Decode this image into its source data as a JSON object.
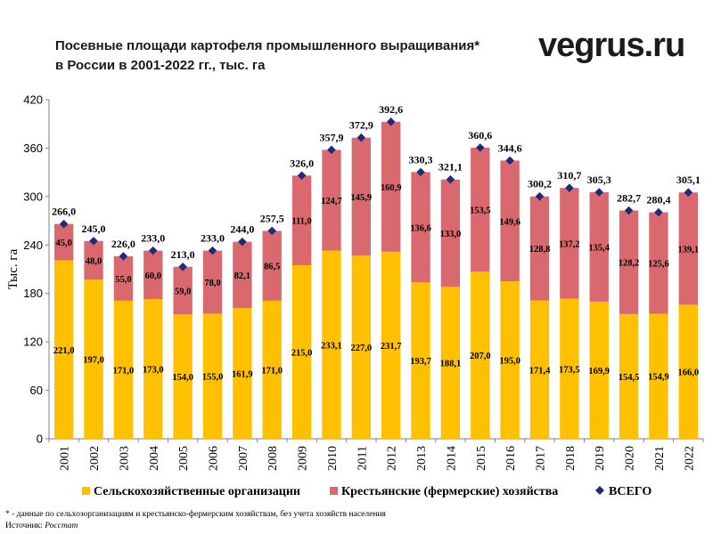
{
  "title_lines": [
    "Посевные площади картофеля промышленного  выращивания*",
    "в России в 2001-2022 гг., тыс. га"
  ],
  "logo": "vegrus.ru",
  "footnote": "* - данные по сельхозорганизациям  и крестьянско-фермерским хозяйствам,  без учета хозяйств  населения",
  "source": {
    "label": "Источник: ",
    "name": "Росстат"
  },
  "colors": {
    "agri_orgs": "#ffc000",
    "farms": "#d9696e",
    "total_marker": "#1f2a7a"
  },
  "chart_data": {
    "type": "bar",
    "stacked": true,
    "categories": [
      "2001",
      "2002",
      "2003",
      "2004",
      "2005",
      "2006",
      "2007",
      "2008",
      "2009",
      "2010",
      "2011",
      "2012",
      "2013",
      "2014",
      "2015",
      "2016",
      "2017",
      "2018",
      "2019",
      "2020",
      "2021",
      "2022"
    ],
    "ylabel": "Тыс. га",
    "ylim": [
      0,
      420
    ],
    "yticks": [
      0,
      60,
      120,
      180,
      240,
      300,
      360,
      420
    ],
    "grid": false,
    "legend_position": "bottom",
    "series": [
      {
        "name": "Сельскохозяйственные организации",
        "values": [
          221.0,
          197.0,
          171.0,
          173.0,
          154.0,
          155.0,
          161.9,
          171.0,
          215.0,
          233.1,
          227.0,
          231.7,
          193.7,
          188.1,
          207.0,
          195.0,
          171.4,
          173.5,
          169.9,
          154.5,
          154.9,
          166.0
        ],
        "labels": [
          "221,0",
          "197,0",
          "171,0",
          "173,0",
          "154,0",
          "155,0",
          "161,9",
          "171,0",
          "215,0",
          "233,1",
          "227,0",
          "231,7",
          "193,7",
          "188,1",
          "207,0",
          "195,0",
          "171,4",
          "173,5",
          "169,9",
          "154,5",
          "154,9",
          "166,0"
        ]
      },
      {
        "name": "Крестьянские (фермерские) хозяйства",
        "values": [
          45.0,
          48.0,
          55.0,
          60.0,
          59.0,
          78.0,
          82.1,
          86.5,
          111.0,
          124.7,
          145.9,
          160.9,
          136.6,
          133.0,
          153.5,
          149.6,
          128.8,
          137.2,
          135.4,
          128.2,
          125.6,
          139.1
        ],
        "labels": [
          "45,0",
          "48,0",
          "55,0",
          "60,0",
          "59,0",
          "78,0",
          "82,1",
          "86,5",
          "111,0",
          "124,7",
          "145,9",
          "160,9",
          "136,6",
          "133,0",
          "153,5",
          "149,6",
          "128,8",
          "137,2",
          "135,4",
          "128,2",
          "125,6",
          "139,1"
        ]
      },
      {
        "name": "ВСЕГО",
        "kind": "marker",
        "values": [
          266.0,
          245.0,
          226.0,
          233.0,
          213.0,
          233.0,
          244.0,
          257.5,
          326.0,
          357.9,
          372.9,
          392.6,
          330.3,
          321.1,
          360.6,
          344.6,
          300.2,
          310.7,
          305.3,
          282.7,
          280.4,
          305.1
        ],
        "labels": [
          "266,0",
          "245,0",
          "226,0",
          "233,0",
          "213,0",
          "233,0",
          "244,0",
          "257,5",
          "326,0",
          "357,9",
          "372,9",
          "392,6",
          "330,3",
          "321,1",
          "360,6",
          "344,6",
          "300,2",
          "310,7",
          "305,3",
          "282,7",
          "280,4",
          "305,1"
        ]
      }
    ]
  }
}
